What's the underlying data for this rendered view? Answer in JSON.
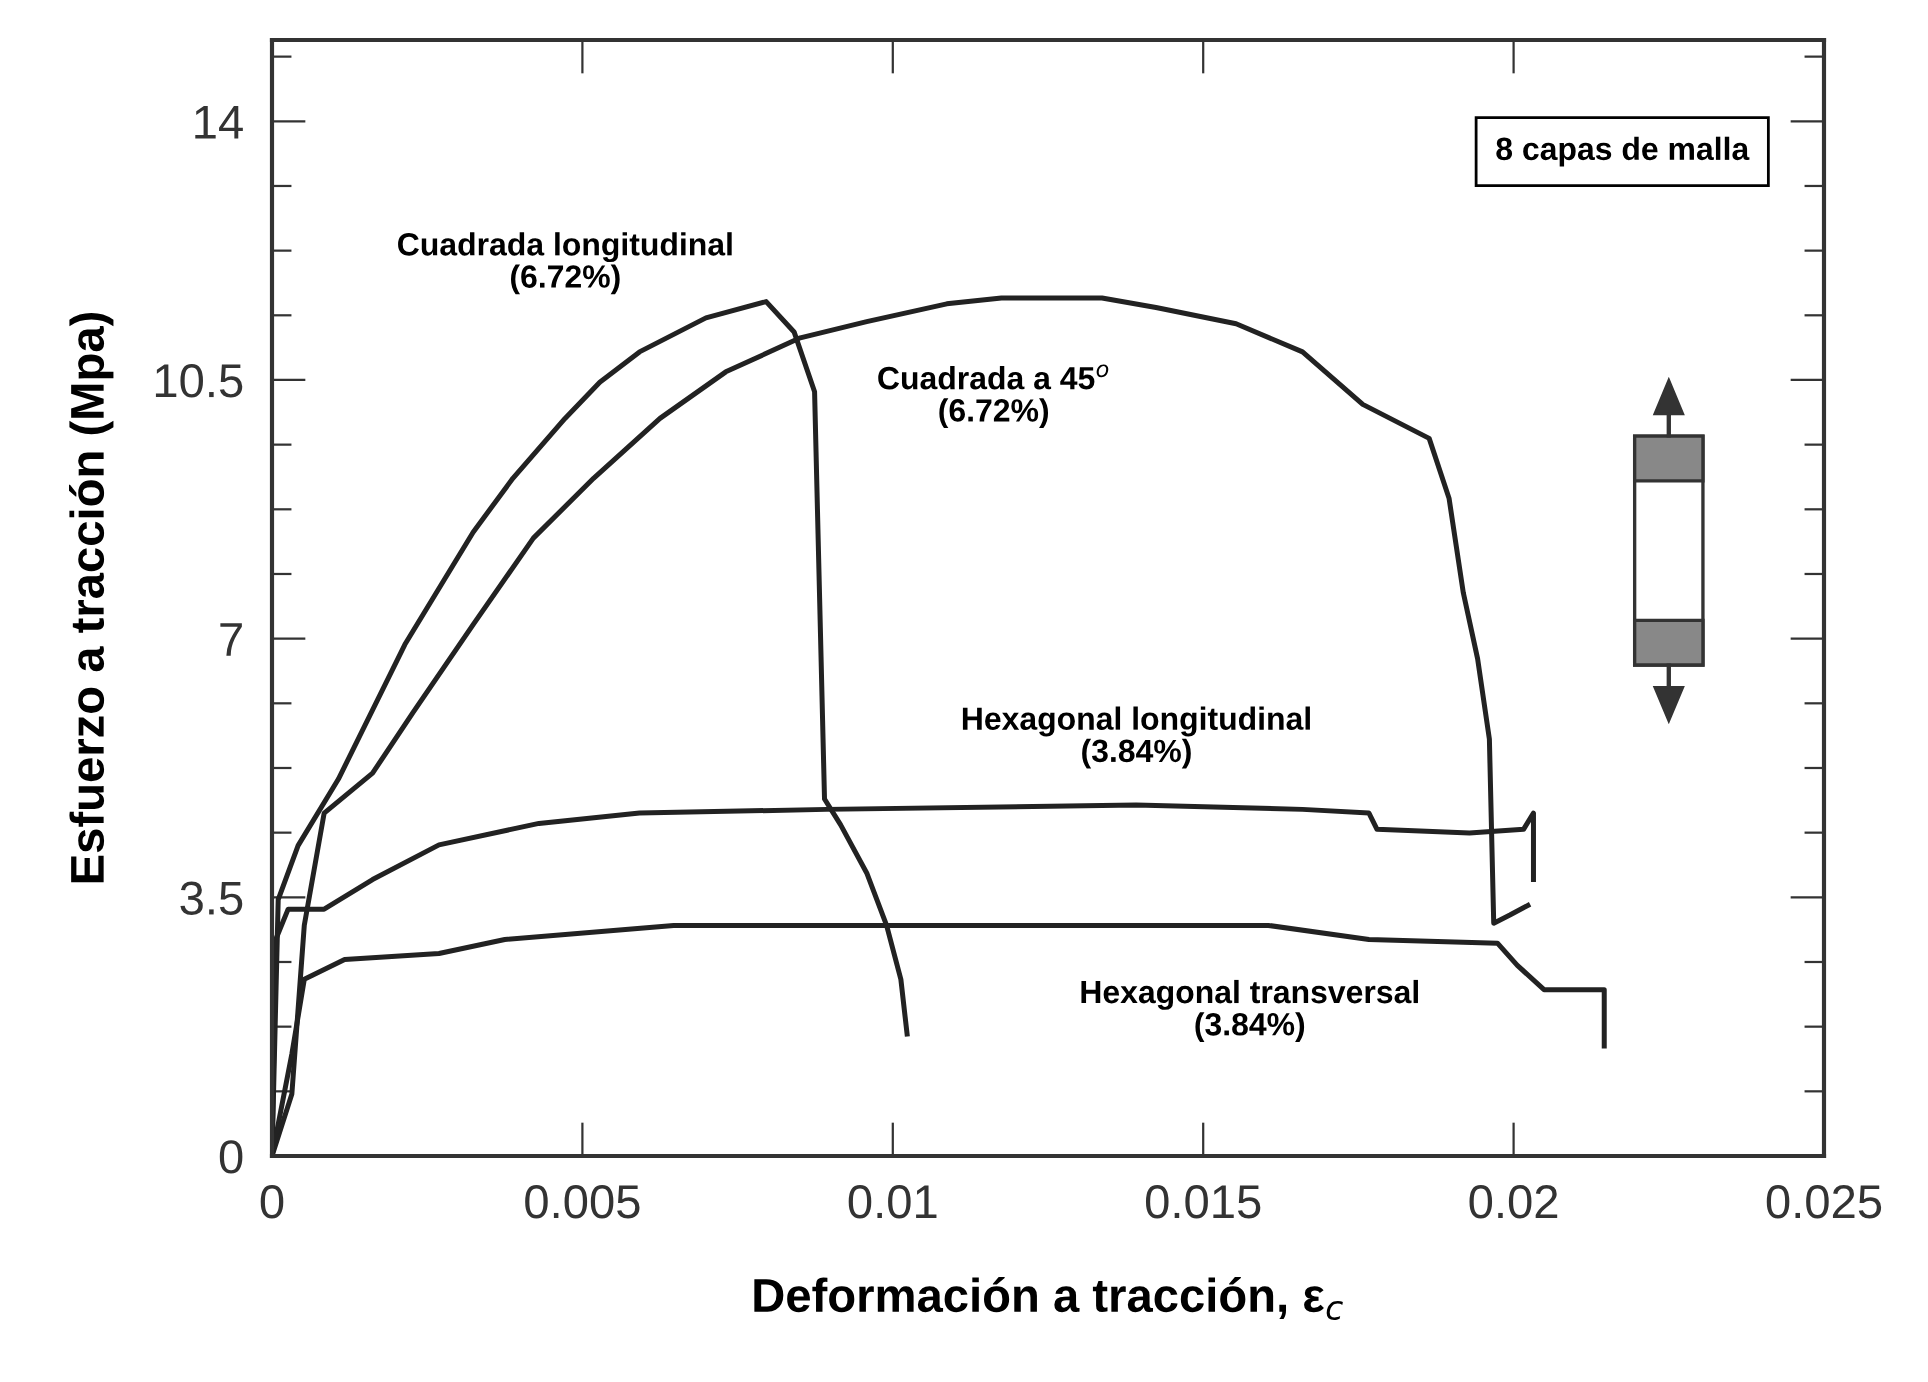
{
  "chart_data": {
    "type": "line",
    "xlabel": "Deformación a tracción, ε$_{c}$",
    "ylabel": "Esfuerzo a tracción (Mpa)",
    "xlim": [
      0,
      0.025
    ],
    "ylim": [
      0,
      15.1
    ],
    "xticks": [
      0,
      0.005,
      0.01,
      0.015,
      0.02,
      0.025
    ],
    "yticks": [
      0,
      {
        "value": 0.875,
        "label": null
      },
      {
        "value": 1.75,
        "label": null
      },
      {
        "value": 2.625,
        "label": null
      },
      3.5,
      {
        "value": 4.375,
        "label": null
      },
      {
        "value": 5.25,
        "label": null
      },
      {
        "value": 6.125,
        "label": null
      },
      7,
      {
        "value": 7.875,
        "label": null
      },
      {
        "value": 8.75,
        "label": null
      },
      {
        "value": 9.625,
        "label": null
      },
      10.5,
      {
        "value": 11.375,
        "label": null
      },
      {
        "value": 12.25,
        "label": null
      },
      {
        "value": 13.125,
        "label": null
      },
      14,
      {
        "value": 14.875,
        "label": null
      }
    ],
    "grid": false,
    "legend": false,
    "annotations": [
      "8 capas de malla"
    ],
    "series": [
      {
        "name": "Cuadrada longitudinal\n(6.72%)",
        "color": "#222222",
        "x": [
          0,
          0.0001,
          0.00042,
          0.00107,
          0.00214,
          0.00324,
          0.00388,
          0.00472,
          0.00528,
          0.00592,
          0.00699,
          0.00796,
          0.00841,
          0.00874,
          0.0089,
          0.00916,
          0.00958,
          0.0099,
          0.01013,
          0.01023
        ],
        "values": [
          0,
          3.47,
          4.2,
          5.1,
          6.92,
          8.44,
          9.17,
          9.98,
          10.47,
          10.88,
          11.34,
          11.56,
          11.15,
          10.34,
          4.83,
          4.48,
          3.83,
          3.12,
          2.39,
          1.65
        ]
      },
      {
        "name": "Cuadrada a 45$^{o}$\n(6.72%)",
        "color": "#222222",
        "x": [
          0,
          0.00032,
          0.00052,
          0.00084,
          0.00162,
          0.00227,
          0.00324,
          0.00421,
          0.00518,
          0.00625,
          0.00731,
          0.00851,
          0.00958,
          0.01087,
          0.01175,
          0.01337,
          0.01424,
          0.01553,
          0.0166,
          0.01757,
          0.01864,
          0.01896,
          0.01919,
          0.01942,
          0.01961,
          0.01968,
          0.01994,
          0.02023
        ],
        "values": [
          0,
          0.84,
          3.12,
          4.64,
          5.18,
          6.0,
          7.19,
          8.36,
          9.17,
          9.98,
          10.61,
          11.07,
          11.29,
          11.53,
          11.61,
          11.61,
          11.48,
          11.26,
          10.88,
          10.17,
          9.71,
          8.9,
          7.62,
          6.73,
          5.64,
          3.15,
          3.26,
          3.39
        ]
      },
      {
        "name": "Hexagonal longitudinal\n(3.84%)",
        "color": "#222222",
        "x": [
          0,
          6e-05,
          0.00026,
          0.00084,
          0.00162,
          0.00269,
          0.0043,
          0.00592,
          0.00893,
          0.01392,
          0.0166,
          0.01767,
          0.0178,
          0.01929,
          0.02016,
          0.02032,
          0.02032
        ],
        "values": [
          0,
          2.93,
          3.34,
          3.34,
          3.74,
          4.21,
          4.5,
          4.64,
          4.69,
          4.75,
          4.69,
          4.64,
          4.42,
          4.37,
          4.42,
          4.64,
          3.74
        ]
      },
      {
        "name": "Hexagonal transversal\n(3.84%)",
        "color": "#222222",
        "x": [
          0,
          0.00032,
          0.00052,
          0.00117,
          0.00269,
          0.00375,
          0.00647,
          0.01023,
          0.01605,
          0.01767,
          0.01974,
          0.02006,
          0.02049,
          0.02146,
          0.02146
        ],
        "values": [
          0,
          1.38,
          2.39,
          2.66,
          2.74,
          2.93,
          3.12,
          3.12,
          3.12,
          2.93,
          2.88,
          2.58,
          2.25,
          2.25,
          1.49
        ]
      }
    ]
  }
}
